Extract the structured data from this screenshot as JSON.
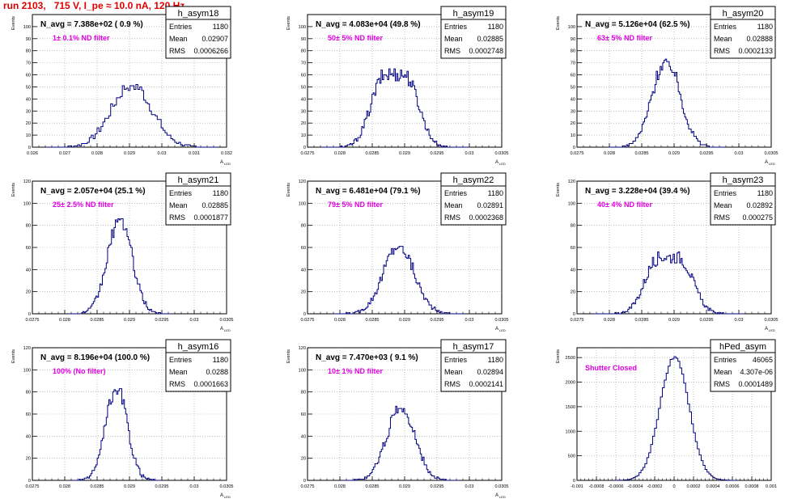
{
  "run_title": "run 2103,   715 V, I_pe ≈ 10.0 nA, 120 Hz",
  "chart_data": [
    {
      "type": "bar",
      "name": "h_asym18",
      "ylabel": "Events",
      "xlabel": "A",
      "xlabel_sub": "LED",
      "title": "N_avg = 7.388e+02 ( 0.9 %)",
      "annotation": "1± 0.1% ND filter",
      "stats": {
        "entries": "1180",
        "mean": "0.02907",
        "rms": "0.0006266"
      },
      "xlim": [
        0.026,
        0.032
      ],
      "ylim": [
        0,
        110
      ],
      "x_ticks": [
        "0.026",
        "0.027",
        "0.028",
        "0.029",
        "0.03",
        "0.031",
        "0.032"
      ],
      "y_ticks": [
        "0",
        "10",
        "20",
        "30",
        "40",
        "50",
        "60",
        "70",
        "80",
        "90",
        "100"
      ],
      "grid": true,
      "bin_width": 6e-05,
      "peak": 52,
      "mean": 0.02907,
      "rms": 0.0006266
    },
    {
      "type": "bar",
      "name": "h_asym19",
      "ylabel": "Events",
      "xlabel": "A",
      "xlabel_sub": "LED",
      "title": "N_avg = 4.083e+04 (49.8 %)",
      "annotation": "50± 5% ND filter",
      "stats": {
        "entries": "1180",
        "mean": "0.02885",
        "rms": "0.0002748"
      },
      "xlim": [
        0.0275,
        0.0305
      ],
      "ylim": [
        0,
        110
      ],
      "x_ticks": [
        "0.0275",
        "0.028",
        "0.0285",
        "0.029",
        "0.0295",
        "0.03",
        "0.0305"
      ],
      "y_ticks": [
        "0",
        "10",
        "20",
        "30",
        "40",
        "50",
        "60",
        "70",
        "80",
        "90",
        "100"
      ],
      "grid": true,
      "bin_width": 2e-05,
      "peak": 66,
      "mean": 0.02885,
      "rms": 0.0002748,
      "bimodal": true
    },
    {
      "type": "bar",
      "name": "h_asym20",
      "ylabel": "Events",
      "xlabel": "A",
      "xlabel_sub": "LED",
      "title": "N_avg = 5.126e+04 (62.5 %)",
      "annotation": "63± 5% ND filter",
      "stats": {
        "entries": "1180",
        "mean": "0.02888",
        "rms": "0.0002133"
      },
      "xlim": [
        0.0275,
        0.0305
      ],
      "ylim": [
        0,
        110
      ],
      "x_ticks": [
        "0.0275",
        "0.028",
        "0.0285",
        "0.029",
        "0.0295",
        "0.03",
        "0.0305"
      ],
      "y_ticks": [
        "0",
        "10",
        "20",
        "30",
        "40",
        "50",
        "60",
        "70",
        "80",
        "90",
        "100"
      ],
      "grid": true,
      "bin_width": 2e-05,
      "peak": 73,
      "mean": 0.02888,
      "rms": 0.0002133
    },
    {
      "type": "bar",
      "name": "h_asym21",
      "ylabel": "Events",
      "xlabel": "A",
      "xlabel_sub": "LED",
      "title": "N_avg = 2.057e+04 (25.1 %)",
      "annotation": "25± 2.5% ND filter",
      "stats": {
        "entries": "1180",
        "mean": "0.02885",
        "rms": "0.0001877"
      },
      "xlim": [
        0.0275,
        0.0305
      ],
      "ylim": [
        0,
        120
      ],
      "x_ticks": [
        "0.0275",
        "0.028",
        "0.0285",
        "0.029",
        "0.0295",
        "0.03",
        "0.0305"
      ],
      "y_ticks": [
        "0",
        "20",
        "40",
        "60",
        "80",
        "100",
        "120"
      ],
      "grid": true,
      "bin_width": 2e-05,
      "peak": 86,
      "mean": 0.02885,
      "rms": 0.0001877
    },
    {
      "type": "bar",
      "name": "h_asym22",
      "ylabel": "Events",
      "xlabel": "A",
      "xlabel_sub": "LED",
      "title": "N_avg = 6.481e+04 (79.1 %)",
      "annotation": "79± 5% ND filter",
      "stats": {
        "entries": "1180",
        "mean": "0.02891",
        "rms": "0.0002368"
      },
      "xlim": [
        0.0275,
        0.0305
      ],
      "ylim": [
        0,
        120
      ],
      "x_ticks": [
        "0.0275",
        "0.028",
        "0.0285",
        "0.029",
        "0.0295",
        "0.03",
        "0.0305"
      ],
      "y_ticks": [
        "0",
        "20",
        "40",
        "60",
        "80",
        "100",
        "120"
      ],
      "grid": true,
      "bin_width": 2e-05,
      "peak": 62,
      "mean": 0.02891,
      "rms": 0.0002368
    },
    {
      "type": "bar",
      "name": "h_asym23",
      "ylabel": "Events",
      "xlabel": "A",
      "xlabel_sub": "LED",
      "title": "N_avg = 3.228e+04 (39.4 %)",
      "annotation": "40± 4% ND filter",
      "stats": {
        "entries": "1180",
        "mean": "0.02892",
        "rms": "0.000275"
      },
      "xlim": [
        0.0275,
        0.0305
      ],
      "ylim": [
        0,
        120
      ],
      "x_ticks": [
        "0.0275",
        "0.028",
        "0.0285",
        "0.029",
        "0.0295",
        "0.03",
        "0.0305"
      ],
      "y_ticks": [
        "0",
        "20",
        "40",
        "60",
        "80",
        "100",
        "120"
      ],
      "grid": true,
      "bin_width": 2e-05,
      "peak": 56,
      "mean": 0.02892,
      "rms": 0.000275,
      "bimodal": true
    },
    {
      "type": "bar",
      "name": "h_asym16",
      "ylabel": "Events",
      "xlabel": "A",
      "xlabel_sub": "LED",
      "title": "N_avg = 8.196e+04 (100.0 %)",
      "annotation": "100% (No filter)",
      "stats": {
        "entries": "1180",
        "mean": "0.0288",
        "rms": "0.0001663"
      },
      "xlim": [
        0.0275,
        0.0305
      ],
      "ylim": [
        0,
        120
      ],
      "x_ticks": [
        "0.0275",
        "0.028",
        "0.0285",
        "0.029",
        "0.0295",
        "0.03",
        "0.0305"
      ],
      "y_ticks": [
        "0",
        "20",
        "40",
        "60",
        "80",
        "100",
        "120"
      ],
      "grid": true,
      "bin_width": 2e-05,
      "peak": 84,
      "mean": 0.0288,
      "rms": 0.0001663
    },
    {
      "type": "bar",
      "name": "h_asym17",
      "ylabel": "Events",
      "xlabel": "A",
      "xlabel_sub": "LED",
      "title": "N_avg = 7.470e+03 ( 9.1 %)",
      "annotation": "10± 1% ND filter",
      "stats": {
        "entries": "1180",
        "mean": "0.02894",
        "rms": "0.0002141"
      },
      "xlim": [
        0.0275,
        0.0305
      ],
      "ylim": [
        0,
        120
      ],
      "x_ticks": [
        "0.0275",
        "0.028",
        "0.0285",
        "0.029",
        "0.0295",
        "0.03",
        "0.0305"
      ],
      "y_ticks": [
        "0",
        "20",
        "40",
        "60",
        "80",
        "100",
        "120"
      ],
      "grid": true,
      "bin_width": 2e-05,
      "peak": 67,
      "mean": 0.02894,
      "rms": 0.0002141
    },
    {
      "type": "bar",
      "name": "hPed_asym",
      "ylabel": "Events",
      "xlabel": "",
      "xlabel_sub": "",
      "title": "",
      "annotation": "Shutter Closed",
      "stats": {
        "entries": "46065",
        "mean": "4.307e-06",
        "rms": "0.0001489"
      },
      "xlim": [
        -0.001,
        0.001
      ],
      "ylim": [
        0,
        2700
      ],
      "x_ticks": [
        "-0.001",
        "-0.0008",
        "-0.0006",
        "-0.0004",
        "-0.0002",
        "0",
        "0.0002",
        "0.0004",
        "0.0006",
        "0.0008",
        "0.001"
      ],
      "y_ticks": [
        "0",
        "500",
        "1000",
        "1500",
        "2000",
        "2500"
      ],
      "grid": true,
      "bin_width": 2e-05,
      "peak": 2520,
      "mean": 4.307e-06,
      "rms": 0.0001489
    }
  ],
  "stats_labels": {
    "entries": "Entries",
    "mean": "Mean",
    "rms": "RMS"
  },
  "colors": {
    "histogram": "#000080",
    "annotation": "#e000e0",
    "run_title": "#e00000",
    "grid": "#999999"
  }
}
